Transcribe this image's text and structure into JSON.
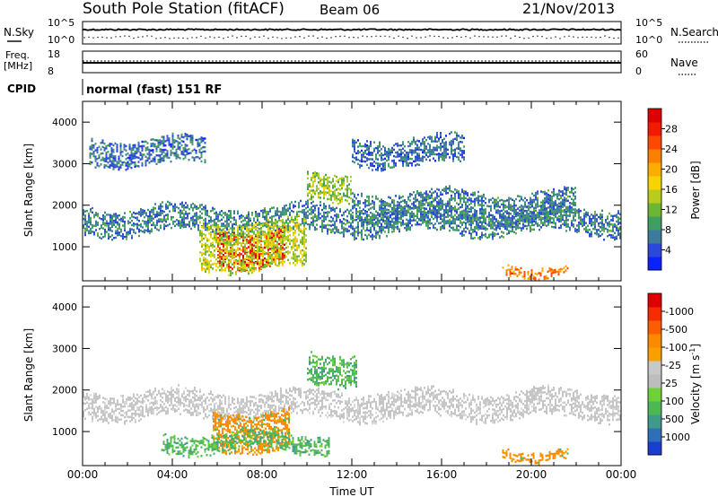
{
  "header": {
    "station": "South Pole Station (fitACF)",
    "beam": "Beam 06",
    "date": "21/Nov/2013"
  },
  "nsky_panel": {
    "left_label": "N.Sky",
    "right_label": "N.Search",
    "left_ticks": [
      "10^5",
      "10^0"
    ],
    "right_ticks": [
      "10^5",
      "10^0"
    ]
  },
  "freq_panel": {
    "left_label_1": "Freq.",
    "left_label_2": "[MHz]",
    "right_label": "Nave",
    "left_ticks": [
      "18",
      "8"
    ],
    "right_ticks": [
      "60",
      "0"
    ]
  },
  "cpid_panel": {
    "label": "CPID",
    "program": "normal (fast) 151 RF"
  },
  "chart_data": [
    {
      "type": "heatmap",
      "quantity": "Power",
      "xlabel": "",
      "ylabel": "Slant Range [km]",
      "x_ticks": [
        "00:00",
        "04:00",
        "08:00",
        "12:00",
        "16:00",
        "20:00",
        "00:00"
      ],
      "xlim_hours": [
        0,
        24
      ],
      "ylim_km": [
        180,
        4500
      ],
      "y_ticks": [
        1000,
        2000,
        3000,
        4000
      ],
      "colorbar": {
        "label": "Power [dB]",
        "ticks": [
          "4",
          "8",
          "12",
          "16",
          "20",
          "24",
          "28"
        ],
        "colors": [
          "#0a22ff",
          "#2b48d8",
          "#3d7a9c",
          "#3f9e62",
          "#6cb635",
          "#b8cc1e",
          "#f7d400",
          "#fbae00",
          "#fb7f00",
          "#fb4a00",
          "#f41a00",
          "#e00000"
        ]
      },
      "regions": [
        {
          "t0": 0.0,
          "t1": 24.0,
          "r0": 1350,
          "r1": 1950,
          "level_db": 6,
          "desc": "persistent band"
        },
        {
          "t0": 0.3,
          "t1": 5.5,
          "r0": 3000,
          "r1": 3600,
          "level_db": 5
        },
        {
          "t0": 6.0,
          "t1": 9.0,
          "r0": 600,
          "r1": 1400,
          "level_db": 28
        },
        {
          "t0": 5.2,
          "t1": 10.0,
          "r0": 500,
          "r1": 1600,
          "level_db": 14
        },
        {
          "t0": 10.0,
          "t1": 12.0,
          "r0": 2200,
          "r1": 2800,
          "level_db": 12
        },
        {
          "t0": 12.0,
          "t1": 17.0,
          "r0": 3000,
          "r1": 3600,
          "level_db": 5
        },
        {
          "t0": 18.7,
          "t1": 21.6,
          "r0": 370,
          "r1": 570,
          "level_db": 22
        },
        {
          "t0": 12.0,
          "t1": 22.0,
          "r0": 1600,
          "r1": 2300,
          "level_db": 6
        }
      ]
    },
    {
      "type": "heatmap",
      "quantity": "Velocity",
      "xlabel": "Time UT",
      "ylabel": "Slant Range [km]",
      "x_ticks": [
        "00:00",
        "04:00",
        "08:00",
        "12:00",
        "16:00",
        "20:00",
        "00:00"
      ],
      "xlim_hours": [
        0,
        24
      ],
      "ylim_km": [
        180,
        4500
      ],
      "y_ticks": [
        1000,
        2000,
        3000,
        4000
      ],
      "colorbar": {
        "label": "Velocity [m s^-1]",
        "label_main": "Velocity [m s",
        "label_sup": "-1",
        "label_end": "]",
        "ticks": [
          "1000",
          "500",
          "100",
          "25",
          "-25",
          "-100",
          "-500",
          "-1000"
        ],
        "colors": [
          "#1a3ed0",
          "#2f6fb8",
          "#3f9a8a",
          "#4cb853",
          "#6fd13a",
          "#bdbdbd",
          "#c8c8c8",
          "#f7a000",
          "#fb8a00",
          "#fb5e00",
          "#f72a00",
          "#e00000"
        ]
      },
      "regions": [
        {
          "t0": 0.0,
          "t1": 24.0,
          "r0": 1350,
          "r1": 1950,
          "velocity": 0,
          "desc": "ground scatter grey"
        },
        {
          "t0": 5.8,
          "t1": 9.2,
          "r0": 600,
          "r1": 1500,
          "velocity": -150
        },
        {
          "t0": 3.5,
          "t1": 11.0,
          "r0": 550,
          "r1": 950,
          "velocity": 120
        },
        {
          "t0": 10.0,
          "t1": 12.2,
          "r0": 2200,
          "r1": 2900,
          "velocity": 300
        },
        {
          "t0": 18.7,
          "t1": 21.6,
          "r0": 370,
          "r1": 570,
          "velocity": -200
        }
      ]
    }
  ]
}
